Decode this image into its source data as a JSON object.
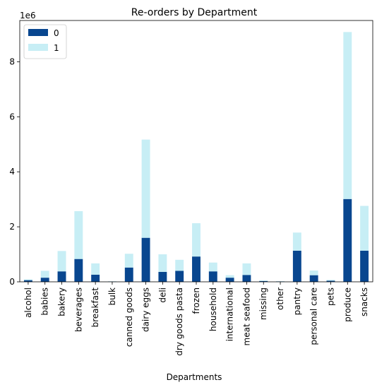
{
  "chart_data": {
    "type": "bar",
    "stacked": true,
    "title": "Re-orders by Department",
    "xlabel": "Departments",
    "ylabel": "",
    "y_offset_text": "1e6",
    "ylim": [
      0,
      9500000
    ],
    "yticks": [
      0,
      2000000,
      4000000,
      6000000,
      8000000
    ],
    "ytick_labels": [
      "0",
      "2",
      "4",
      "6",
      "8"
    ],
    "legend_position": "top-left",
    "categories": [
      "alcohol",
      "babies",
      "bakery",
      "beverages",
      "breakfast",
      "bulk",
      "canned goods",
      "dairy eggs",
      "deli",
      "dry goods pasta",
      "frozen",
      "household",
      "international",
      "meat seafood",
      "missing",
      "other",
      "pantry",
      "personal care",
      "pets",
      "produce",
      "snacks"
    ],
    "series": [
      {
        "name": "0",
        "color": "#08468f",
        "values": [
          60000,
          150000,
          380000,
          830000,
          260000,
          8000,
          520000,
          1600000,
          360000,
          400000,
          920000,
          380000,
          150000,
          250000,
          30000,
          12000,
          1130000,
          240000,
          40000,
          3010000,
          1130000
        ]
      },
      {
        "name": "1",
        "color": "#c7eef5",
        "values": [
          30000,
          250000,
          740000,
          1740000,
          410000,
          12000,
          500000,
          3570000,
          640000,
          400000,
          1210000,
          320000,
          90000,
          420000,
          20000,
          10000,
          660000,
          170000,
          30000,
          6070000,
          1630000
        ]
      }
    ]
  }
}
